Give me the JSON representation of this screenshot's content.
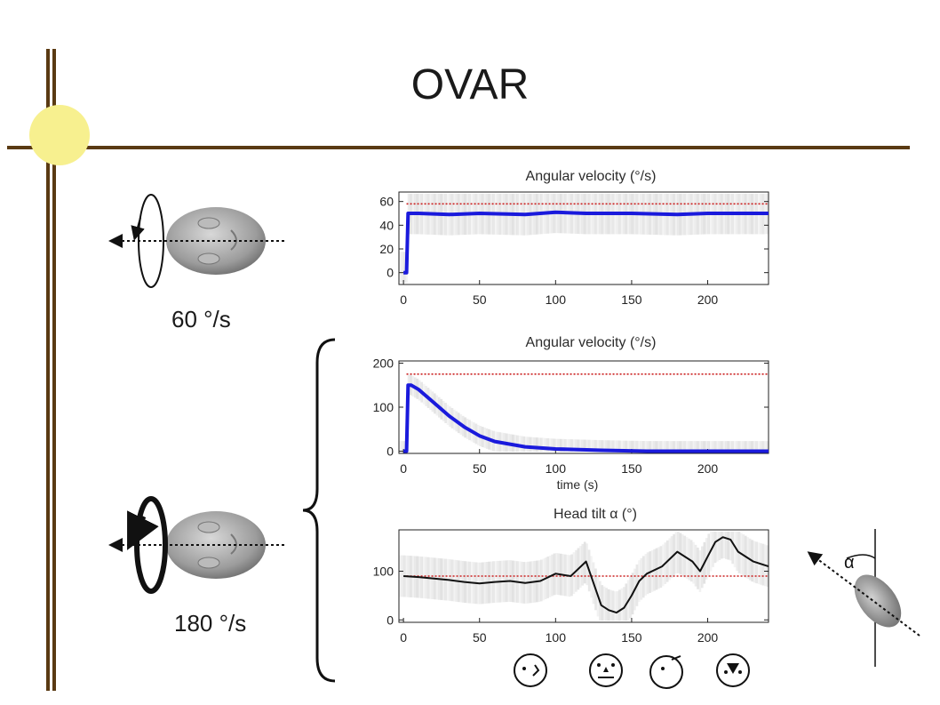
{
  "slide": {
    "title": "OVAR",
    "speed_slow": "60 °/s",
    "speed_fast": "180 °/s",
    "alpha_label": "α",
    "colors": {
      "frame": "#5a3a13",
      "sun": "#f7f08f",
      "trace": "#1a1adc",
      "reference": "#cc2222"
    }
  },
  "chart_data": [
    {
      "type": "line",
      "title": "Angular velocity (°/s)",
      "xlabel": "",
      "xlim": [
        -3,
        240
      ],
      "ylim": [
        -10,
        68
      ],
      "xticks": [
        0,
        50,
        100,
        150,
        200
      ],
      "yticks": [
        0,
        20,
        40,
        60
      ],
      "reference": {
        "y": 58,
        "color": "#cc2222",
        "style": "dotted"
      },
      "series": [
        {
          "color": "#1a1adc",
          "x": [
            0,
            2,
            3,
            10,
            30,
            50,
            80,
            100,
            120,
            150,
            180,
            200,
            220,
            240
          ],
          "y": [
            0,
            0,
            50,
            50,
            49,
            50,
            49,
            51,
            50,
            50,
            49,
            50,
            50,
            50
          ]
        }
      ]
    },
    {
      "type": "line",
      "title": "Angular velocity (°/s)",
      "xlabel": "time (s)",
      "xlim": [
        -3,
        240
      ],
      "ylim": [
        -5,
        205
      ],
      "xticks": [
        0,
        50,
        100,
        150,
        200
      ],
      "yticks": [
        0,
        100,
        200
      ],
      "reference": {
        "y": 175,
        "color": "#cc2222",
        "style": "dotted"
      },
      "series": [
        {
          "color": "#1a1adc",
          "x": [
            0,
            2,
            3,
            5,
            10,
            20,
            30,
            40,
            50,
            60,
            80,
            100,
            130,
            160,
            200,
            240
          ],
          "y": [
            0,
            0,
            150,
            150,
            140,
            110,
            80,
            55,
            35,
            22,
            10,
            5,
            2,
            0,
            0,
            0
          ]
        }
      ]
    },
    {
      "type": "line",
      "title": "Head tilt α (°)",
      "xlabel": "",
      "xlim": [
        -3,
        240
      ],
      "ylim": [
        -5,
        185
      ],
      "xticks": [
        0,
        50,
        100,
        150,
        200
      ],
      "yticks": [
        0,
        100
      ],
      "reference": {
        "y": 90,
        "color": "#cc2222",
        "style": "dotted"
      },
      "series": [
        {
          "color": "#111111",
          "x": [
            0,
            10,
            20,
            30,
            40,
            50,
            60,
            70,
            80,
            90,
            100,
            110,
            120,
            130,
            135,
            140,
            145,
            150,
            155,
            160,
            170,
            180,
            190,
            195,
            200,
            205,
            210,
            215,
            220,
            230,
            240
          ],
          "y": [
            90,
            88,
            85,
            82,
            78,
            75,
            78,
            80,
            76,
            80,
            95,
            90,
            120,
            30,
            20,
            15,
            25,
            50,
            80,
            95,
            110,
            140,
            120,
            100,
            130,
            160,
            170,
            165,
            140,
            120,
            110
          ]
        }
      ]
    }
  ],
  "icons": {
    "head_slow": "rotating-head-icon",
    "head_fast": "rotating-head-icon",
    "tilted_head": "tilted-head-icon",
    "faces": [
      "face-icon",
      "face-icon",
      "face-icon",
      "face-icon"
    ]
  }
}
